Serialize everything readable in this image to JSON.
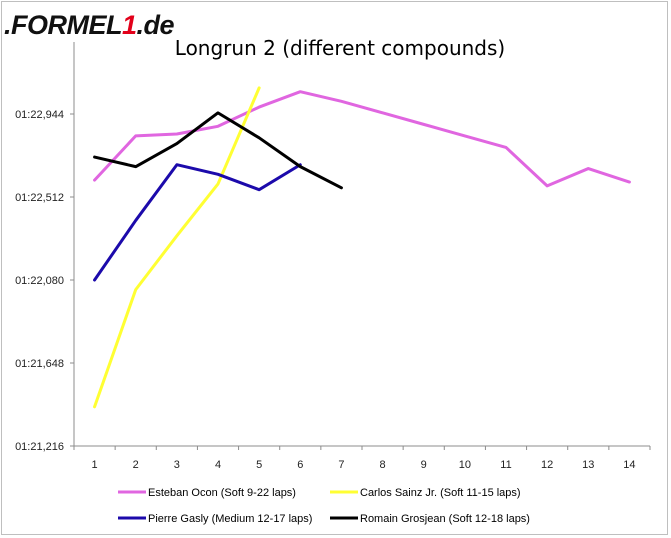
{
  "logo": {
    "text_a": ".FORMEL",
    "text_b": "1",
    "text_c": ".de"
  },
  "chart_data": {
    "type": "line",
    "title": "Longrun 2 (different compounds)",
    "xlabel": "",
    "ylabel": "",
    "x": [
      1,
      2,
      3,
      4,
      5,
      6,
      7,
      8,
      9,
      10,
      11,
      12,
      13,
      14
    ],
    "ylim": [
      81.216,
      83.376
    ],
    "y_ticks": [
      81.216,
      81.648,
      82.08,
      82.512,
      82.944
    ],
    "y_tick_labels": [
      "01:21,216",
      "01:21,648",
      "01:22,080",
      "01:22,512",
      "01:22,944"
    ],
    "x_tick_labels": [
      "1",
      "2",
      "3",
      "4",
      "5",
      "6",
      "7",
      "8",
      "9",
      "10",
      "11",
      "12",
      "13",
      "14"
    ],
    "grid": false,
    "legend_position": "bottom",
    "series": [
      {
        "name": "Esteban Ocon (Soft 9-22 laps)",
        "color": "#e066e0",
        "x": [
          1,
          2,
          3,
          4,
          5,
          6,
          7,
          8,
          9,
          10,
          11,
          12,
          13,
          14
        ],
        "values": [
          82.6,
          82.83,
          82.84,
          82.88,
          82.98,
          83.06,
          83.01,
          82.95,
          82.89,
          82.83,
          82.77,
          82.57,
          82.66,
          82.59
        ]
      },
      {
        "name": "Carlos Sainz Jr. (Soft 11-15 laps)",
        "color": "#ffff33",
        "x": [
          1,
          2,
          3,
          4,
          5
        ],
        "values": [
          81.42,
          82.03,
          82.31,
          82.58,
          83.08
        ]
      },
      {
        "name": "Pierre Gasly (Medium 12-17 laps)",
        "color": "#1c0aab",
        "x": [
          1,
          2,
          3,
          4,
          5,
          6
        ],
        "values": [
          82.08,
          82.39,
          82.68,
          82.63,
          82.55,
          82.68
        ]
      },
      {
        "name": "Romain Grosjean (Soft 12-18 laps)",
        "color": "#000000",
        "x": [
          1,
          2,
          3,
          4,
          5,
          6,
          7
        ],
        "values": [
          82.72,
          82.67,
          82.79,
          82.95,
          82.82,
          82.67,
          82.56
        ]
      }
    ]
  }
}
